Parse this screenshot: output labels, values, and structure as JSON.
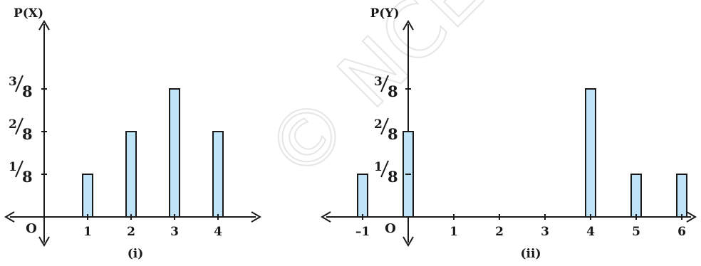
{
  "colors": {
    "bar_fill": "#bfe3f7",
    "bar_stroke": "#1a1a1a",
    "axis": "#1a1a1a",
    "watermark": "#e8e8e8"
  },
  "watermark": "© NCERT republished",
  "chart_data": [
    {
      "type": "bar",
      "panel_label": "(i)",
      "ylabel": "P(X)",
      "origin_label": "O",
      "x": [
        1,
        2,
        3,
        4
      ],
      "x_ticks": [
        "1",
        "2",
        "3",
        "4"
      ],
      "values": [
        0.125,
        0.25,
        0.375,
        0.25
      ],
      "y_ticks": [
        {
          "value": 0.125,
          "num": "1",
          "den": "8"
        },
        {
          "value": 0.25,
          "num": "2",
          "den": "8"
        },
        {
          "value": 0.375,
          "num": "3",
          "den": "8"
        }
      ],
      "ylim": [
        0,
        0.5
      ],
      "grid": false
    },
    {
      "type": "bar",
      "panel_label": "(ii)",
      "ylabel": "P(Y)",
      "origin_label": "O",
      "x": [
        -1,
        0,
        4,
        5,
        6
      ],
      "x_ticks": [
        "–1",
        "1",
        "2",
        "3",
        "4",
        "5",
        "6"
      ],
      "x_tick_values": [
        -1,
        1,
        2,
        3,
        4,
        5,
        6
      ],
      "values": [
        0.125,
        0.25,
        0.375,
        0.125,
        0.125
      ],
      "y_ticks": [
        {
          "value": 0.125,
          "num": "1",
          "den": "8"
        },
        {
          "value": 0.25,
          "num": "2",
          "den": "8"
        },
        {
          "value": 0.375,
          "num": "3",
          "den": "8"
        }
      ],
      "ylim": [
        0,
        0.5
      ],
      "grid": false
    }
  ]
}
